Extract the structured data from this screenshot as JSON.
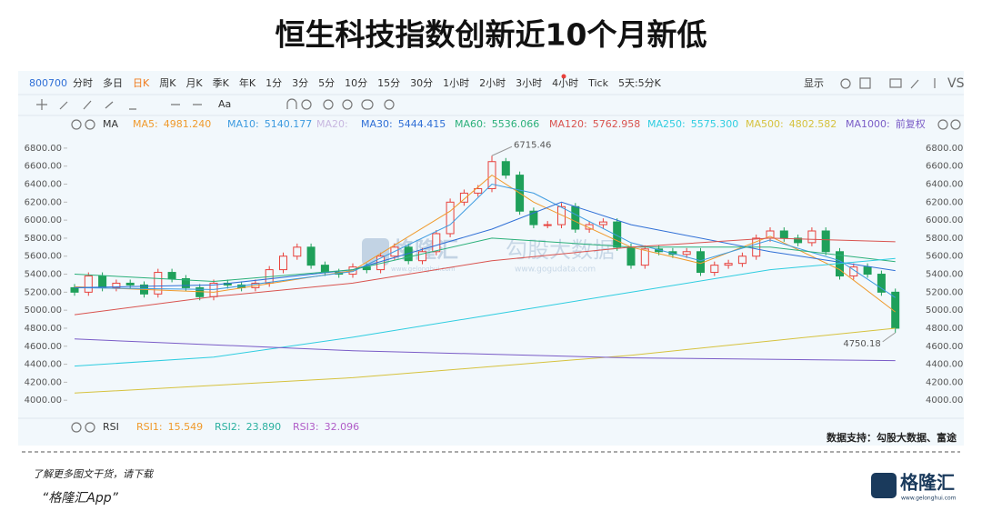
{
  "header": {
    "title": "恒生科技指数创新近10个月新低"
  },
  "toolbar": {
    "code": "800700",
    "periods": [
      "分时",
      "多日",
      "日K",
      "周K",
      "月K",
      "季K",
      "年K",
      "1分",
      "3分",
      "5分",
      "10分",
      "15分",
      "30分",
      "1小时",
      "2小时",
      "3小时",
      "4小时",
      "Tick",
      "5天:5分K"
    ],
    "selected_index": 2,
    "display": "显示",
    "vs": "VS",
    "text_tool": "Aa"
  },
  "indicator_bar": {
    "name": "MA",
    "adjust": "前复权"
  },
  "chart_data": {
    "type": "candlestick",
    "open": [
      5250,
      5200,
      5380,
      5250,
      5300,
      5280,
      5180,
      5420,
      5350,
      5250,
      5150,
      5300,
      5280,
      5250,
      5300,
      5450,
      5600,
      5700,
      5500,
      5420,
      5400,
      5480,
      5450,
      5600,
      5700,
      5550,
      5650,
      5850,
      6200,
      6300,
      6350,
      6650,
      6500,
      6100,
      5950,
      5950,
      6150,
      5900,
      5950,
      5980,
      5700,
      5500,
      5680,
      5650,
      5620,
      5650,
      5420,
      5500,
      5520,
      5600,
      5800,
      5880,
      5800,
      5750,
      5880,
      5650,
      5380,
      5480,
      5400,
      5200
    ],
    "high": [
      5290,
      5420,
      5420,
      5340,
      5340,
      5320,
      5460,
      5460,
      5390,
      5290,
      5340,
      5340,
      5320,
      5340,
      5490,
      5640,
      5740,
      5740,
      5540,
      5460,
      5520,
      5520,
      5640,
      5740,
      5740,
      5690,
      5890,
      6240,
      6340,
      6390,
      6715.46,
      6690,
      6540,
      6140,
      5990,
      6190,
      6190,
      5990,
      6020,
      6020,
      5740,
      5720,
      5720,
      5690,
      5690,
      5690,
      5540,
      5560,
      5640,
      5840,
      5920,
      5920,
      5840,
      5920,
      5920,
      5690,
      5520,
      5520,
      5440,
      5240
    ],
    "low": [
      5160,
      5160,
      5210,
      5210,
      5240,
      5140,
      5140,
      5310,
      5210,
      5110,
      5110,
      5240,
      5210,
      5210,
      5260,
      5410,
      5560,
      5460,
      5380,
      5360,
      5360,
      5410,
      5410,
      5560,
      5510,
      5510,
      5610,
      5810,
      6160,
      6260,
      6310,
      6460,
      6060,
      5910,
      5910,
      5910,
      5860,
      5860,
      5910,
      5660,
      5460,
      5460,
      5610,
      5580,
      5580,
      5380,
      5380,
      5460,
      5480,
      5560,
      5760,
      5760,
      5710,
      5710,
      5610,
      5340,
      5340,
      5360,
      5160,
      4750.18
    ],
    "close": [
      5200,
      5380,
      5250,
      5300,
      5280,
      5180,
      5420,
      5350,
      5250,
      5150,
      5300,
      5280,
      5250,
      5300,
      5450,
      5600,
      5700,
      5500,
      5420,
      5400,
      5480,
      5450,
      5600,
      5700,
      5550,
      5650,
      5850,
      6200,
      6300,
      6350,
      6650,
      6500,
      6100,
      5950,
      5950,
      6150,
      5900,
      5950,
      5980,
      5700,
      5500,
      5680,
      5650,
      5620,
      5650,
      5420,
      5500,
      5520,
      5600,
      5800,
      5880,
      5800,
      5750,
      5880,
      5650,
      5380,
      5480,
      5400,
      5200,
      4800
    ],
    "up_color": "#e8413c",
    "down_color": "#1fa05a",
    "ylim": [
      3800,
      6910
    ],
    "yticks": [
      {
        "value": 4000,
        "label": "4000.00"
      },
      {
        "value": 4200,
        "label": "4200.00"
      },
      {
        "value": 4400,
        "label": "4400.00"
      },
      {
        "value": 4600,
        "label": "4600.00"
      },
      {
        "value": 4800,
        "label": "4800.00"
      },
      {
        "value": 5000,
        "label": "5000.00"
      },
      {
        "value": 5200,
        "label": "5200.00"
      },
      {
        "value": 5400,
        "label": "5400.00"
      },
      {
        "value": 5600,
        "label": "5600.00"
      },
      {
        "value": 5800,
        "label": "5800.00"
      },
      {
        "value": 6000,
        "label": "6000.00"
      },
      {
        "value": 6200,
        "label": "6200.00"
      },
      {
        "value": 6400,
        "label": "6400.00"
      },
      {
        "value": 6600,
        "label": "6600.00"
      },
      {
        "value": 6800,
        "label": "6800.00"
      }
    ],
    "high_label_index": 30,
    "low_label_index": 59,
    "moving_averages": [
      {
        "name": "MA5:",
        "color": "#f09a2c",
        "latest": {
          "value": 4981.24,
          "label": "4981.240"
        },
        "x": [
          0,
          10,
          20,
          27,
          30,
          33,
          40,
          45,
          50,
          55,
          59
        ],
        "values": [
          5260,
          5200,
          5440,
          6100,
          6500,
          6200,
          5700,
          5520,
          5820,
          5450,
          4980
        ]
      },
      {
        "name": "MA10:",
        "color": "#3d9be0",
        "latest": {
          "value": 5140.177,
          "label": "5140.177"
        },
        "x": [
          0,
          10,
          20,
          27,
          30,
          33,
          40,
          45,
          50,
          55,
          59
        ],
        "values": [
          5250,
          5230,
          5430,
          5950,
          6400,
          6300,
          5750,
          5550,
          5780,
          5550,
          5140
        ]
      },
      {
        "name": "MA20:",
        "color": "#c8b8e0"
      },
      {
        "name": "MA30:",
        "color": "#2f6fd6",
        "latest": {
          "value": 5444.415,
          "label": "5444.415"
        },
        "x": [
          0,
          10,
          20,
          30,
          35,
          40,
          50,
          59
        ],
        "values": [
          5250,
          5280,
          5450,
          5900,
          6200,
          5950,
          5650,
          5440
        ]
      },
      {
        "name": "MA60:",
        "color": "#2bb07a",
        "latest": {
          "value": 5536.066,
          "label": "5536.066"
        },
        "x": [
          0,
          10,
          20,
          30,
          40,
          50,
          59
        ],
        "values": [
          5400,
          5320,
          5450,
          5800,
          5700,
          5700,
          5540
        ]
      },
      {
        "name": "MA120:",
        "color": "#d9534f",
        "latest": {
          "value": 5762.958,
          "label": "5762.958"
        },
        "x": [
          0,
          10,
          20,
          30,
          40,
          50,
          59
        ],
        "values": [
          4950,
          5150,
          5300,
          5550,
          5700,
          5800,
          5760
        ]
      },
      {
        "name": "MA250:",
        "color": "#2fcde0",
        "latest": {
          "value": 5575.3,
          "label": "5575.300"
        },
        "x": [
          0,
          10,
          20,
          30,
          40,
          50,
          59
        ],
        "values": [
          4380,
          4480,
          4700,
          4950,
          5200,
          5450,
          5575
        ]
      },
      {
        "name": "MA500:",
        "color": "#d6c23e",
        "latest": {
          "value": 4802.582,
          "label": "4802.582"
        },
        "x": [
          0,
          20,
          40,
          59
        ],
        "values": [
          4080,
          4250,
          4500,
          4800
        ]
      },
      {
        "name": "MA1000:",
        "color": "#7a5cc7",
        "latest": {
          "value": 4450,
          "label": "前复权"
        },
        "x": [
          0,
          20,
          40,
          59
        ],
        "values": [
          4680,
          4550,
          4470,
          4440
        ]
      }
    ]
  },
  "rsi": {
    "name": "RSI",
    "series": [
      {
        "name": "RSI1:",
        "color": "#f09a2c",
        "value": {
          "value": 15.549,
          "label": "15.549"
        }
      },
      {
        "name": "RSI2:",
        "color": "#2bb0a0",
        "value": {
          "value": 23.89,
          "label": "23.890"
        }
      },
      {
        "name": "RSI3:",
        "color": "#b05cc7",
        "value": {
          "value": 32.096,
          "label": "32.096"
        }
      }
    ]
  },
  "watermark": {
    "brand": "格隆汇",
    "brand_url": "www.gelonghui.com",
    "data_brand": "勾股大数据",
    "data_url": "www.gogudata.com"
  },
  "footer": {
    "source": "数据支持：勾股大数据、富途",
    "promo": "了解更多图文干货，请下载",
    "app": "“格隆汇App”",
    "logo": "格隆汇",
    "logo_url": "www.gelonghui.com"
  }
}
